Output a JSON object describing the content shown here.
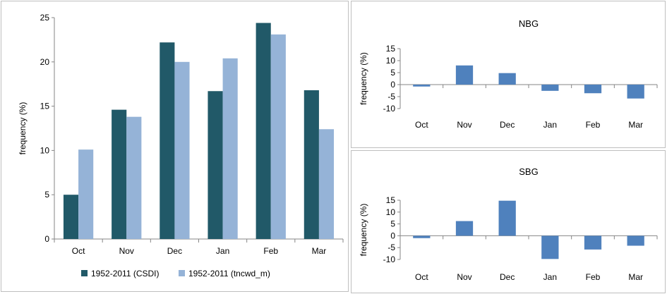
{
  "chart_data": [
    {
      "type": "bar",
      "title": "",
      "xlabel": "",
      "ylabel": "frequency (%)",
      "categories": [
        "Oct",
        "Nov",
        "Dec",
        "Jan",
        "Feb",
        "Mar"
      ],
      "ylim": [
        0,
        25
      ],
      "yticks": [
        0,
        5,
        10,
        15,
        20,
        25
      ],
      "grid": false,
      "legend_position": "bottom",
      "series": [
        {
          "name": "1952-2011 (CSDI)",
          "color": "#215968",
          "values": [
            5.0,
            14.6,
            22.2,
            16.7,
            24.4,
            16.8
          ]
        },
        {
          "name": "1952-2011 (tncwd_m)",
          "color": "#95b3d7",
          "values": [
            10.1,
            13.8,
            20.0,
            20.4,
            23.1,
            12.4
          ]
        }
      ]
    },
    {
      "type": "bar",
      "title": "NBG",
      "xlabel": "",
      "ylabel": "frequency (%)",
      "categories": [
        "Oct",
        "Nov",
        "Dec",
        "Jan",
        "Feb",
        "Mar"
      ],
      "ylim": [
        -10,
        15
      ],
      "yticks": [
        -10,
        -5,
        0,
        5,
        10,
        15
      ],
      "grid": false,
      "series": [
        {
          "color": "#4f81bd",
          "values": [
            -0.8,
            8.0,
            4.8,
            -2.6,
            -3.6,
            -5.8
          ]
        }
      ]
    },
    {
      "type": "bar",
      "title": "SBG",
      "xlabel": "",
      "ylabel": "frequency (%)",
      "categories": [
        "Oct",
        "Nov",
        "Dec",
        "Jan",
        "Feb",
        "Mar"
      ],
      "ylim": [
        -10,
        15
      ],
      "yticks": [
        -10,
        -5,
        0,
        5,
        10,
        15
      ],
      "grid": false,
      "series": [
        {
          "color": "#4f81bd",
          "values": [
            -1.0,
            6.2,
            14.8,
            -9.8,
            -5.8,
            -4.2
          ]
        }
      ]
    }
  ]
}
